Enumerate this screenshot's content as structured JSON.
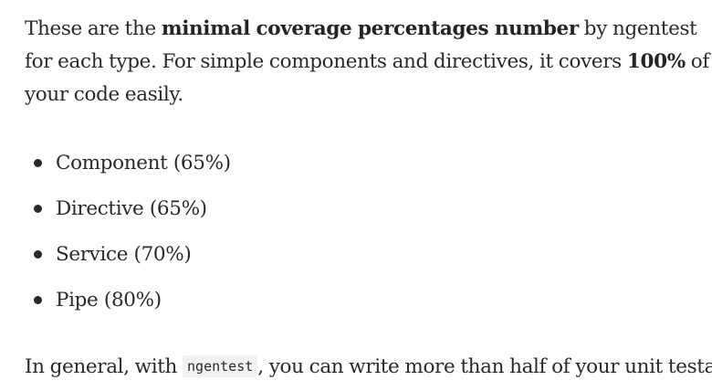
{
  "intro": {
    "t1": "These are the ",
    "b1": "minimal coverage percentages number",
    "t2": " by ngentest for each type. For simple components and directives, it covers ",
    "b2": "100%",
    "t3": " of your code easily."
  },
  "list": {
    "items": [
      {
        "label": "Component (65%)"
      },
      {
        "label": "Directive (65%)"
      },
      {
        "label": "Service (70%)"
      },
      {
        "label": "Pipe (80%)"
      }
    ]
  },
  "outro": {
    "t1": "In general, with ",
    "code": "ngentest",
    "t2": ", you can write more than half of your unit testa."
  }
}
